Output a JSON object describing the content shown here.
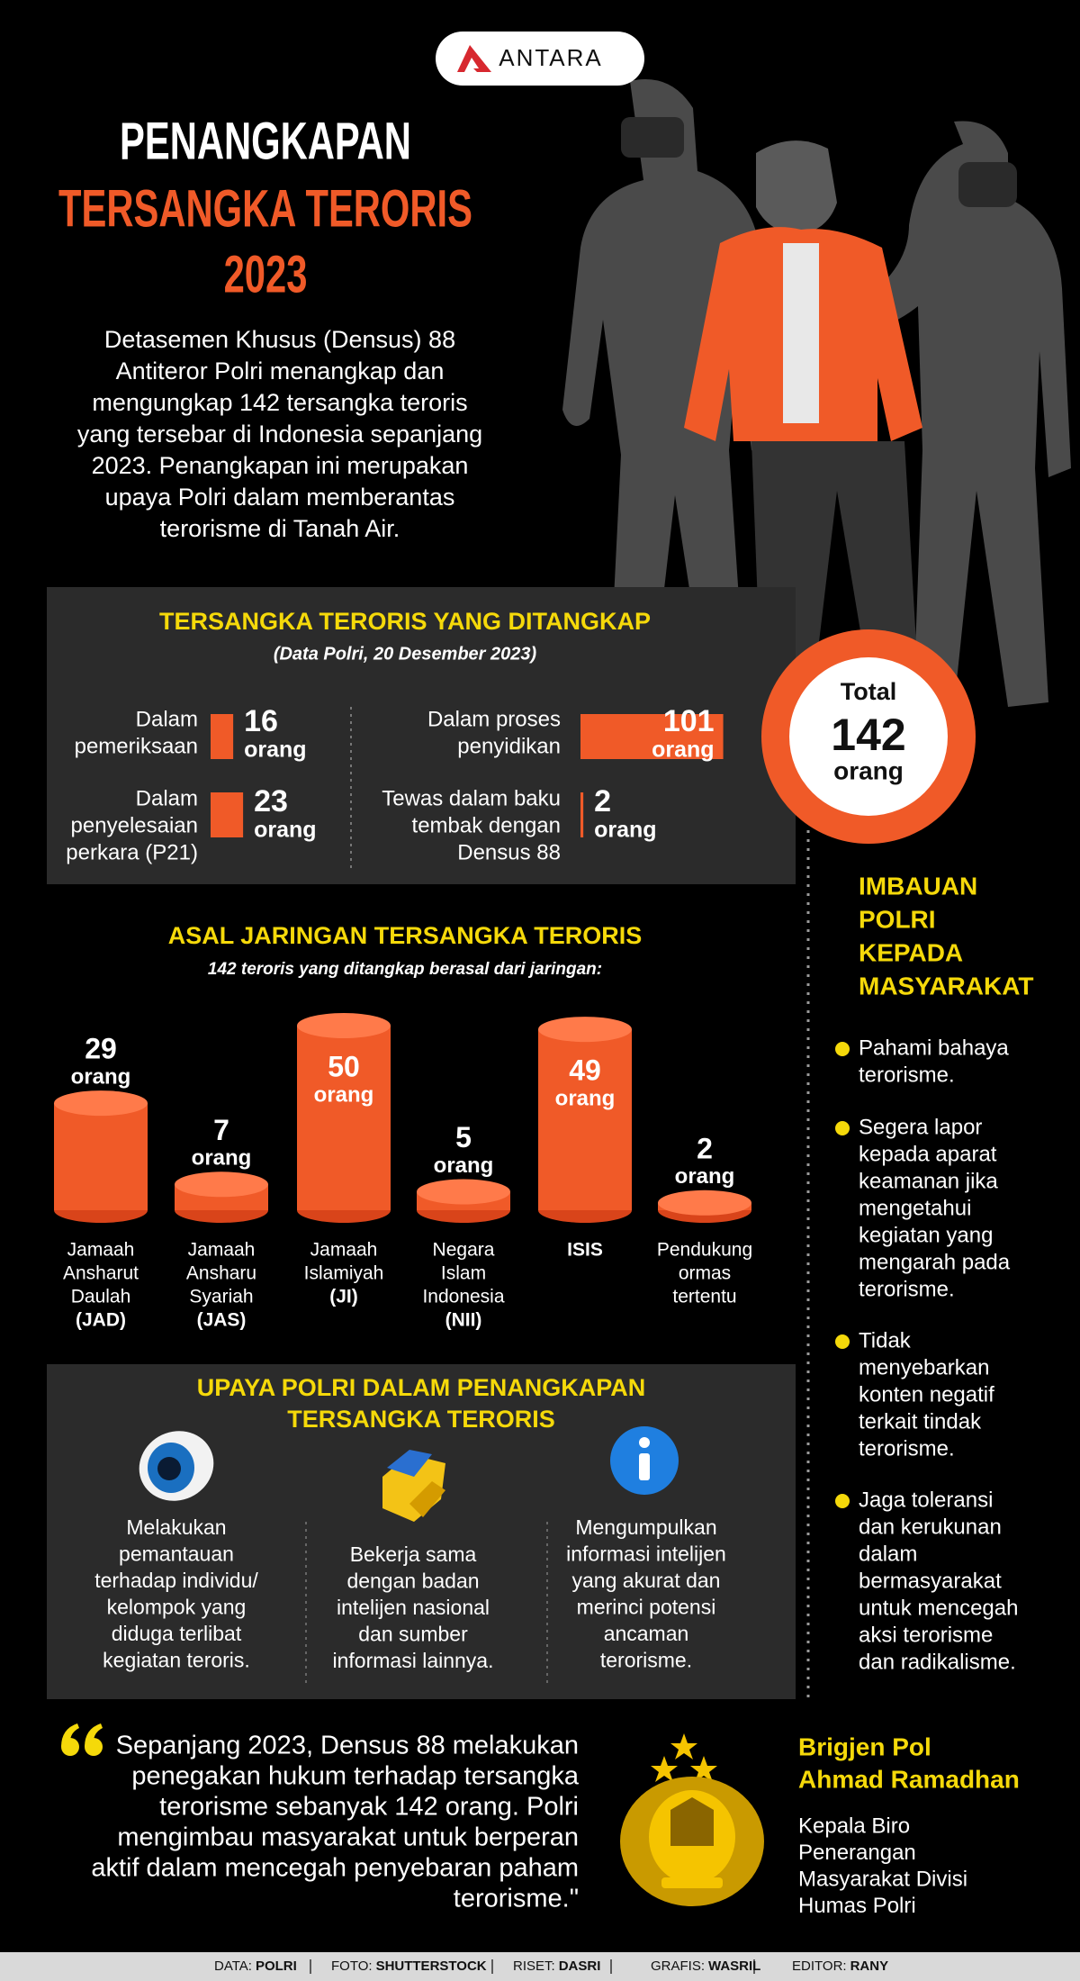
{
  "header": {
    "logo": "ANTARA",
    "title_lines": [
      "PENANGKAPAN",
      "TERSANGKA TERORIS",
      "2023"
    ]
  },
  "intro_lines": [
    "Detasemen Khusus (Densus) 88",
    "Antiteror Polri menangkap dan",
    "mengungkap 142 tersangka teroris",
    "yang tersebar di Indonesia sepanjang",
    "2023. Penangkapan ini merupakan",
    "upaya Polri dalam memberantas",
    "terorisme di Tanah Air."
  ],
  "arrests": {
    "title": "TERSANGKA TERORIS YANG DITANGKAP",
    "subtitle": "(Data Polri, 20 Desember 2023)",
    "items": [
      {
        "label_lines": [
          "Dalam",
          "pemeriksaan"
        ],
        "value": 16,
        "unit": "orang"
      },
      {
        "label_lines": [
          "Dalam",
          "penyelesaian",
          "perkara (P21)"
        ],
        "value": 23,
        "unit": "orang"
      },
      {
        "label_lines": [
          "Dalam proses",
          "penyidikan"
        ],
        "value": 101,
        "unit": "orang"
      },
      {
        "label_lines": [
          "Tewas dalam baku",
          "tembak dengan",
          "Densus 88"
        ],
        "value": 2,
        "unit": "orang"
      }
    ],
    "total": {
      "label": "Total",
      "value": 142,
      "unit": "orang"
    }
  },
  "networks": {
    "title": "ASAL JARINGAN TERSANGKA TERORIS",
    "subtitle": "142 teroris yang ditangkap berasal dari jaringan:",
    "items": [
      {
        "value": 29,
        "unit": "orang",
        "label_lines": [
          "Jamaah",
          "Ansharut",
          "Daulah"
        ],
        "abbr": "(JAD)"
      },
      {
        "value": 7,
        "unit": "orang",
        "label_lines": [
          "Jamaah",
          "Ansharu",
          "Syariah"
        ],
        "abbr": "(JAS)"
      },
      {
        "value": 50,
        "unit": "orang",
        "label_lines": [
          "Jamaah",
          "Islamiyah"
        ],
        "abbr": "(JI)"
      },
      {
        "value": 5,
        "unit": "orang",
        "label_lines": [
          "Negara",
          "Islam",
          "Indonesia"
        ],
        "abbr": "(NII)"
      },
      {
        "value": 49,
        "unit": "orang",
        "label_lines": [],
        "abbr": "ISIS"
      },
      {
        "value": 2,
        "unit": "orang",
        "label_lines": [
          "Pendukung",
          "ormas",
          "tertentu"
        ]
      }
    ]
  },
  "efforts": {
    "title_lines": [
      "UPAYA POLRI DALAM PENANGKAPAN",
      "TERSANGKA TERORIS"
    ],
    "items": [
      {
        "lines": [
          "Melakukan",
          "pemantauan",
          "terhadap individu/",
          "kelompok yang",
          "diduga terlibat",
          "kegiatan teroris."
        ]
      },
      {
        "lines": [
          "Bekerja sama",
          "dengan badan",
          "intelijen nasional",
          "dan sumber",
          "informasi lainnya."
        ]
      },
      {
        "lines": [
          "Mengumpulkan",
          "informasi intelijen",
          "yang akurat dan",
          "merinci potensi",
          "ancaman",
          "terorisme."
        ]
      }
    ]
  },
  "appeal": {
    "title_lines": [
      "IMBAUAN",
      "POLRI",
      "KEPADA",
      "MASYARAKAT"
    ],
    "items": [
      {
        "lines": [
          "Pahami bahaya",
          "terorisme."
        ]
      },
      {
        "lines": [
          "Segera lapor",
          "kepada aparat",
          "keamanan jika",
          "mengetahui",
          "kegiatan yang",
          "mengarah pada",
          "terorisme."
        ]
      },
      {
        "lines": [
          "Tidak",
          "menyebarkan",
          "konten negatif",
          "terkait tindak",
          "terorisme."
        ]
      },
      {
        "lines": [
          "Jaga toleransi",
          "dan kerukunan",
          "dalam",
          "bermasyarakat",
          "untuk mencegah",
          "aksi terorisme",
          "dan radikalisme."
        ]
      }
    ]
  },
  "quote": {
    "lines": [
      "Sepanjang 2023, Densus 88 melakukan",
      "penegakan hukum terhadap tersangka",
      "terorisme sebanyak 142 orang. Polri",
      "mengimbau masyarakat untuk berperan",
      "aktif dalam mencegah penyebaran paham",
      "terorisme.\""
    ]
  },
  "speaker": {
    "name_lines": [
      "Brigjen Pol",
      "Ahmad Ramadhan"
    ],
    "role_lines": [
      "Kepala Biro",
      "Penerangan",
      "Masyarakat Divisi",
      "Humas Polri"
    ]
  },
  "footer": {
    "credits": [
      {
        "label": "DATA:",
        "value": "POLRI"
      },
      {
        "label": "FOTO:",
        "value": "SHUTTERSTOCK"
      },
      {
        "label": "RISET:",
        "value": "DASRI"
      },
      {
        "label": "GRAFIS:",
        "value": "WASRIL"
      },
      {
        "label": "EDITOR:",
        "value": "RANY"
      }
    ]
  }
}
